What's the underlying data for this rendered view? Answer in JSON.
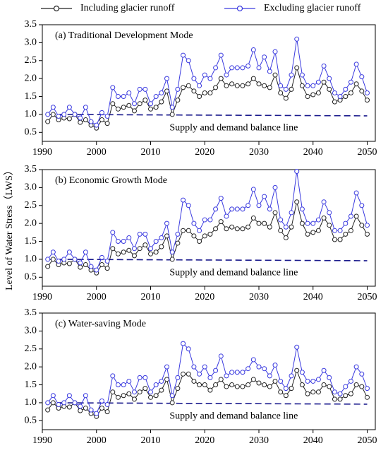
{
  "chart_data": [
    {
      "type": "line",
      "title": "(a) Traditional Development Mode",
      "annotation": "Supply and demand balance line",
      "balance_value": 1.0,
      "xlim": [
        1990,
        2051.5
      ],
      "xticks": [
        1990,
        2000,
        2010,
        2020,
        2030,
        2040,
        2050
      ],
      "ylim": [
        0.25,
        3.5
      ],
      "yticks": [
        0.5,
        {
          "value": 1,
          "label": "1.0"
        },
        1.5,
        {
          "value": 2,
          "label": "2.0"
        },
        2.5,
        {
          "value": 3,
          "label": "3.0"
        },
        3.5
      ],
      "x": [
        1991,
        1992,
        1993,
        1994,
        1995,
        1996,
        1997,
        1998,
        1999,
        2000,
        2001,
        2002,
        2003,
        2004,
        2005,
        2006,
        2007,
        2008,
        2009,
        2010,
        2011,
        2012,
        2013,
        2014,
        2015,
        2016,
        2017,
        2018,
        2019,
        2020,
        2021,
        2022,
        2023,
        2024,
        2025,
        2026,
        2027,
        2028,
        2029,
        2030,
        2031,
        2032,
        2033,
        2034,
        2035,
        2036,
        2037,
        2038,
        2039,
        2040,
        2041,
        2042,
        2043,
        2044,
        2045,
        2046,
        2047,
        2048,
        2049,
        2050
      ],
      "series": [
        {
          "name": "Including glacier runoff",
          "color": "#222222",
          "values": [
            0.8,
            1.0,
            0.85,
            0.9,
            0.88,
            1.0,
            0.78,
            0.85,
            0.7,
            0.62,
            0.85,
            0.75,
            1.3,
            1.15,
            1.2,
            1.25,
            1.1,
            1.3,
            1.4,
            1.15,
            1.2,
            1.35,
            1.65,
            1.0,
            1.4,
            1.75,
            1.8,
            1.65,
            1.5,
            1.6,
            1.6,
            1.75,
            2.0,
            1.8,
            1.85,
            1.8,
            1.8,
            1.85,
            2.0,
            1.85,
            1.8,
            1.75,
            2.1,
            1.6,
            1.45,
            1.7,
            2.3,
            1.8,
            1.5,
            1.55,
            1.6,
            1.9,
            1.7,
            1.35,
            1.4,
            1.5,
            1.6,
            1.85,
            1.65,
            1.4
          ]
        },
        {
          "name": "Excluding glacier runoff",
          "color": "#3a3adf",
          "values": [
            1.0,
            1.2,
            0.95,
            1.0,
            1.2,
            1.0,
            0.9,
            1.2,
            0.8,
            0.7,
            1.05,
            0.95,
            1.75,
            1.5,
            1.5,
            1.6,
            1.3,
            1.7,
            1.7,
            1.3,
            1.5,
            1.6,
            2.0,
            1.2,
            1.7,
            2.65,
            2.5,
            2.0,
            1.8,
            2.1,
            2.0,
            2.3,
            2.65,
            2.1,
            2.3,
            2.3,
            2.3,
            2.35,
            2.8,
            2.3,
            2.6,
            2.2,
            2.75,
            1.8,
            1.7,
            2.1,
            3.1,
            2.1,
            1.8,
            1.8,
            1.9,
            2.35,
            2.0,
            1.6,
            1.5,
            1.7,
            1.9,
            2.4,
            2.05,
            1.6
          ]
        }
      ]
    },
    {
      "type": "line",
      "title": "(b)  Economic Growth Mode",
      "annotation": "Supply and demand balance line",
      "balance_value": 1.0,
      "y_label": "Level of Water Stress（LWS）",
      "xlim": [
        1990,
        2051.5
      ],
      "xticks": [
        1990,
        2000,
        2010,
        2020,
        2030,
        2040,
        2050
      ],
      "ylim": [
        0.25,
        3.5
      ],
      "yticks": [
        0.5,
        {
          "value": 1,
          "label": "1.0"
        },
        1.5,
        {
          "value": 2,
          "label": "2.0"
        },
        2.5,
        {
          "value": 3,
          "label": "3.0"
        },
        3.5
      ],
      "x": [
        1991,
        1992,
        1993,
        1994,
        1995,
        1996,
        1997,
        1998,
        1999,
        2000,
        2001,
        2002,
        2003,
        2004,
        2005,
        2006,
        2007,
        2008,
        2009,
        2010,
        2011,
        2012,
        2013,
        2014,
        2015,
        2016,
        2017,
        2018,
        2019,
        2020,
        2021,
        2022,
        2023,
        2024,
        2025,
        2026,
        2027,
        2028,
        2029,
        2030,
        2031,
        2032,
        2033,
        2034,
        2035,
        2036,
        2037,
        2038,
        2039,
        2040,
        2041,
        2042,
        2043,
        2044,
        2045,
        2046,
        2047,
        2048,
        2049,
        2050
      ],
      "series": [
        {
          "name": "Including glacier runoff",
          "color": "#222222",
          "values": [
            0.8,
            1.0,
            0.85,
            0.9,
            0.88,
            1.0,
            0.78,
            0.85,
            0.7,
            0.62,
            0.85,
            0.75,
            1.3,
            1.15,
            1.2,
            1.25,
            1.1,
            1.3,
            1.4,
            1.15,
            1.2,
            1.35,
            1.65,
            1.0,
            1.45,
            1.8,
            1.8,
            1.65,
            1.5,
            1.65,
            1.7,
            1.85,
            2.05,
            1.85,
            1.9,
            1.85,
            1.85,
            1.9,
            2.15,
            2.0,
            2.0,
            1.9,
            2.3,
            1.8,
            1.6,
            1.9,
            2.6,
            2.0,
            1.7,
            1.75,
            1.8,
            2.15,
            1.95,
            1.55,
            1.55,
            1.7,
            1.8,
            2.2,
            1.95,
            1.7
          ]
        },
        {
          "name": "Excluding glacier runoff",
          "color": "#3a3adf",
          "values": [
            1.0,
            1.2,
            0.95,
            1.0,
            1.2,
            1.0,
            0.9,
            1.2,
            0.8,
            0.7,
            1.05,
            0.95,
            1.75,
            1.5,
            1.5,
            1.6,
            1.3,
            1.7,
            1.7,
            1.3,
            1.5,
            1.6,
            2.0,
            1.2,
            1.7,
            2.65,
            2.5,
            2.0,
            1.8,
            2.1,
            2.1,
            2.4,
            2.7,
            2.2,
            2.4,
            2.4,
            2.4,
            2.5,
            2.95,
            2.5,
            2.75,
            2.4,
            3.0,
            2.1,
            1.9,
            2.3,
            3.45,
            2.4,
            2.0,
            2.0,
            2.1,
            2.6,
            2.3,
            1.8,
            1.8,
            2.0,
            2.2,
            2.85,
            2.5,
            1.95
          ]
        }
      ]
    },
    {
      "type": "line",
      "title": "(c) Water-saving Mode",
      "annotation": "Supply and demand balance line",
      "balance_value": 1.0,
      "xlim": [
        1990,
        2051.5
      ],
      "xticks": [
        1990,
        2000,
        2010,
        2020,
        2030,
        2040,
        2050
      ],
      "ylim": [
        0.25,
        3.5
      ],
      "yticks": [
        0.5,
        {
          "value": 1,
          "label": "1.0"
        },
        1.5,
        {
          "value": 2,
          "label": "2.0"
        },
        2.5,
        {
          "value": 3,
          "label": "3.0"
        },
        3.5
      ],
      "x": [
        1991,
        1992,
        1993,
        1994,
        1995,
        1996,
        1997,
        1998,
        1999,
        2000,
        2001,
        2002,
        2003,
        2004,
        2005,
        2006,
        2007,
        2008,
        2009,
        2010,
        2011,
        2012,
        2013,
        2014,
        2015,
        2016,
        2017,
        2018,
        2019,
        2020,
        2021,
        2022,
        2023,
        2024,
        2025,
        2026,
        2027,
        2028,
        2029,
        2030,
        2031,
        2032,
        2033,
        2034,
        2035,
        2036,
        2037,
        2038,
        2039,
        2040,
        2041,
        2042,
        2043,
        2044,
        2045,
        2046,
        2047,
        2048,
        2049,
        2050
      ],
      "series": [
        {
          "name": "Including glacier runoff",
          "color": "#222222",
          "values": [
            0.8,
            1.0,
            0.85,
            0.9,
            0.88,
            1.0,
            0.78,
            0.85,
            0.7,
            0.62,
            0.85,
            0.75,
            1.3,
            1.15,
            1.2,
            1.25,
            1.1,
            1.3,
            1.4,
            1.15,
            1.2,
            1.35,
            1.65,
            1.0,
            1.4,
            1.8,
            1.8,
            1.6,
            1.5,
            1.5,
            1.35,
            1.5,
            1.65,
            1.45,
            1.5,
            1.45,
            1.45,
            1.5,
            1.65,
            1.55,
            1.5,
            1.45,
            1.6,
            1.3,
            1.2,
            1.4,
            1.9,
            1.5,
            1.25,
            1.3,
            1.3,
            1.5,
            1.45,
            1.1,
            1.1,
            1.2,
            1.25,
            1.5,
            1.45,
            1.15
          ]
        },
        {
          "name": "Excluding glacier runoff",
          "color": "#3a3adf",
          "values": [
            1.0,
            1.2,
            0.95,
            1.0,
            1.2,
            1.0,
            0.9,
            1.2,
            0.8,
            0.7,
            1.05,
            0.95,
            1.75,
            1.5,
            1.5,
            1.6,
            1.3,
            1.7,
            1.7,
            1.3,
            1.5,
            1.6,
            2.0,
            1.2,
            1.7,
            2.65,
            2.5,
            2.0,
            1.8,
            2.0,
            1.7,
            1.9,
            2.3,
            1.75,
            1.85,
            1.85,
            1.85,
            1.95,
            2.2,
            2.0,
            1.95,
            1.75,
            2.05,
            1.6,
            1.4,
            1.75,
            2.55,
            1.85,
            1.6,
            1.6,
            1.65,
            1.9,
            1.7,
            1.3,
            1.25,
            1.45,
            1.6,
            2.0,
            1.8,
            1.4
          ]
        }
      ]
    }
  ]
}
